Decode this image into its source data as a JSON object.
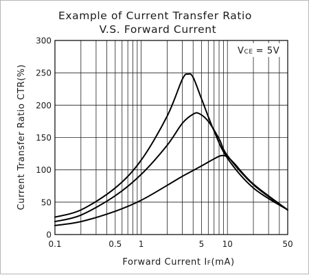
{
  "chart_data": {
    "type": "line",
    "title": "Example of Current Transfer Ratio",
    "subtitle": "V.S. Forward Current",
    "xlabel": "Forward Current I",
    "xlabel_subscript": "F",
    "xlabel_unit": "(mA)",
    "ylabel": "Current Transfer Ratio CTR(%)",
    "annotation": "V",
    "annotation_subscript": "CE",
    "annotation_value": "= 5V",
    "x_scale": "log",
    "xlim": [
      0.1,
      50
    ],
    "ylim": [
      0,
      300
    ],
    "grid": true,
    "x_tick_labels": [
      {
        "value": 0.1,
        "label": "0.1"
      },
      {
        "value": 0.5,
        "label": "0.5"
      },
      {
        "value": 1,
        "label": "1"
      },
      {
        "value": 5,
        "label": "5"
      },
      {
        "value": 10,
        "label": "10"
      },
      {
        "value": 50,
        "label": "50"
      }
    ],
    "x_gridlines": [
      0.1,
      0.2,
      0.3,
      0.4,
      0.5,
      0.6,
      0.7,
      0.8,
      0.9,
      1,
      2,
      3,
      4,
      5,
      6,
      7,
      8,
      9,
      10,
      20,
      30,
      40,
      50
    ],
    "y_ticks": [
      0,
      50,
      100,
      150,
      200,
      250,
      300
    ],
    "series": [
      {
        "x": [
          0.1,
          0.2,
          0.5,
          1,
          2,
          3,
          3.5,
          4,
          5,
          7,
          10,
          20,
          50
        ],
        "y": [
          27,
          38,
          72,
          115,
          183,
          240,
          248,
          243,
          210,
          160,
          118,
          72,
          38
        ]
      },
      {
        "x": [
          0.1,
          0.2,
          0.5,
          1,
          2,
          3,
          4,
          4.7,
          6,
          8,
          10,
          20,
          50
        ],
        "y": [
          20,
          30,
          60,
          93,
          138,
          172,
          186,
          187,
          175,
          148,
          122,
          77,
          38
        ]
      },
      {
        "x": [
          0.1,
          0.2,
          0.5,
          1,
          2,
          3,
          5,
          7,
          8.5,
          10,
          12,
          20,
          50
        ],
        "y": [
          14,
          20,
          36,
          53,
          76,
          90,
          106,
          117,
          122,
          120,
          110,
          78,
          38
        ]
      }
    ]
  }
}
